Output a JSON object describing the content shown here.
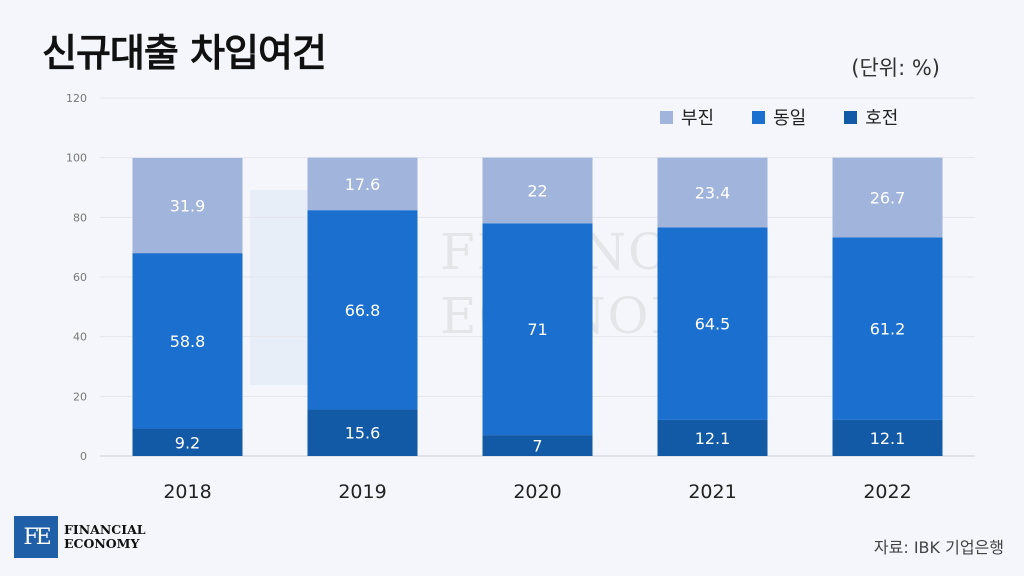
{
  "header": {
    "title": "신규대출 차입여건",
    "unit": "(단위: %)"
  },
  "legend": [
    {
      "label": "부진",
      "color": "#a0b4dc"
    },
    {
      "label": "동일",
      "color": "#1a6fcf"
    },
    {
      "label": "호전",
      "color": "#135aa6"
    }
  ],
  "footer": {
    "brand_mark": "FE",
    "brand_line1": "FINANCIAL",
    "brand_line2": "ECONOMY",
    "source": "자료: IBK 기업은행"
  },
  "chart_data": {
    "type": "bar",
    "stacked": true,
    "categories": [
      "2018",
      "2019",
      "2020",
      "2021",
      "2022"
    ],
    "series": [
      {
        "name": "호전",
        "values": [
          9.2,
          15.6,
          7,
          12.1,
          12.1
        ],
        "color": "#135aa6"
      },
      {
        "name": "동일",
        "values": [
          58.8,
          66.8,
          71,
          64.5,
          61.2
        ],
        "color": "#1a6fcf"
      },
      {
        "name": "부진",
        "values": [
          31.9,
          17.6,
          22,
          23.4,
          26.7
        ],
        "color": "#a0b4dc"
      }
    ],
    "title": "신규대출 차입여건",
    "ylim": [
      0,
      120
    ],
    "yticks": [
      0,
      20,
      40,
      60,
      80,
      100,
      120
    ],
    "grid": true,
    "legend_position": "top-right"
  }
}
